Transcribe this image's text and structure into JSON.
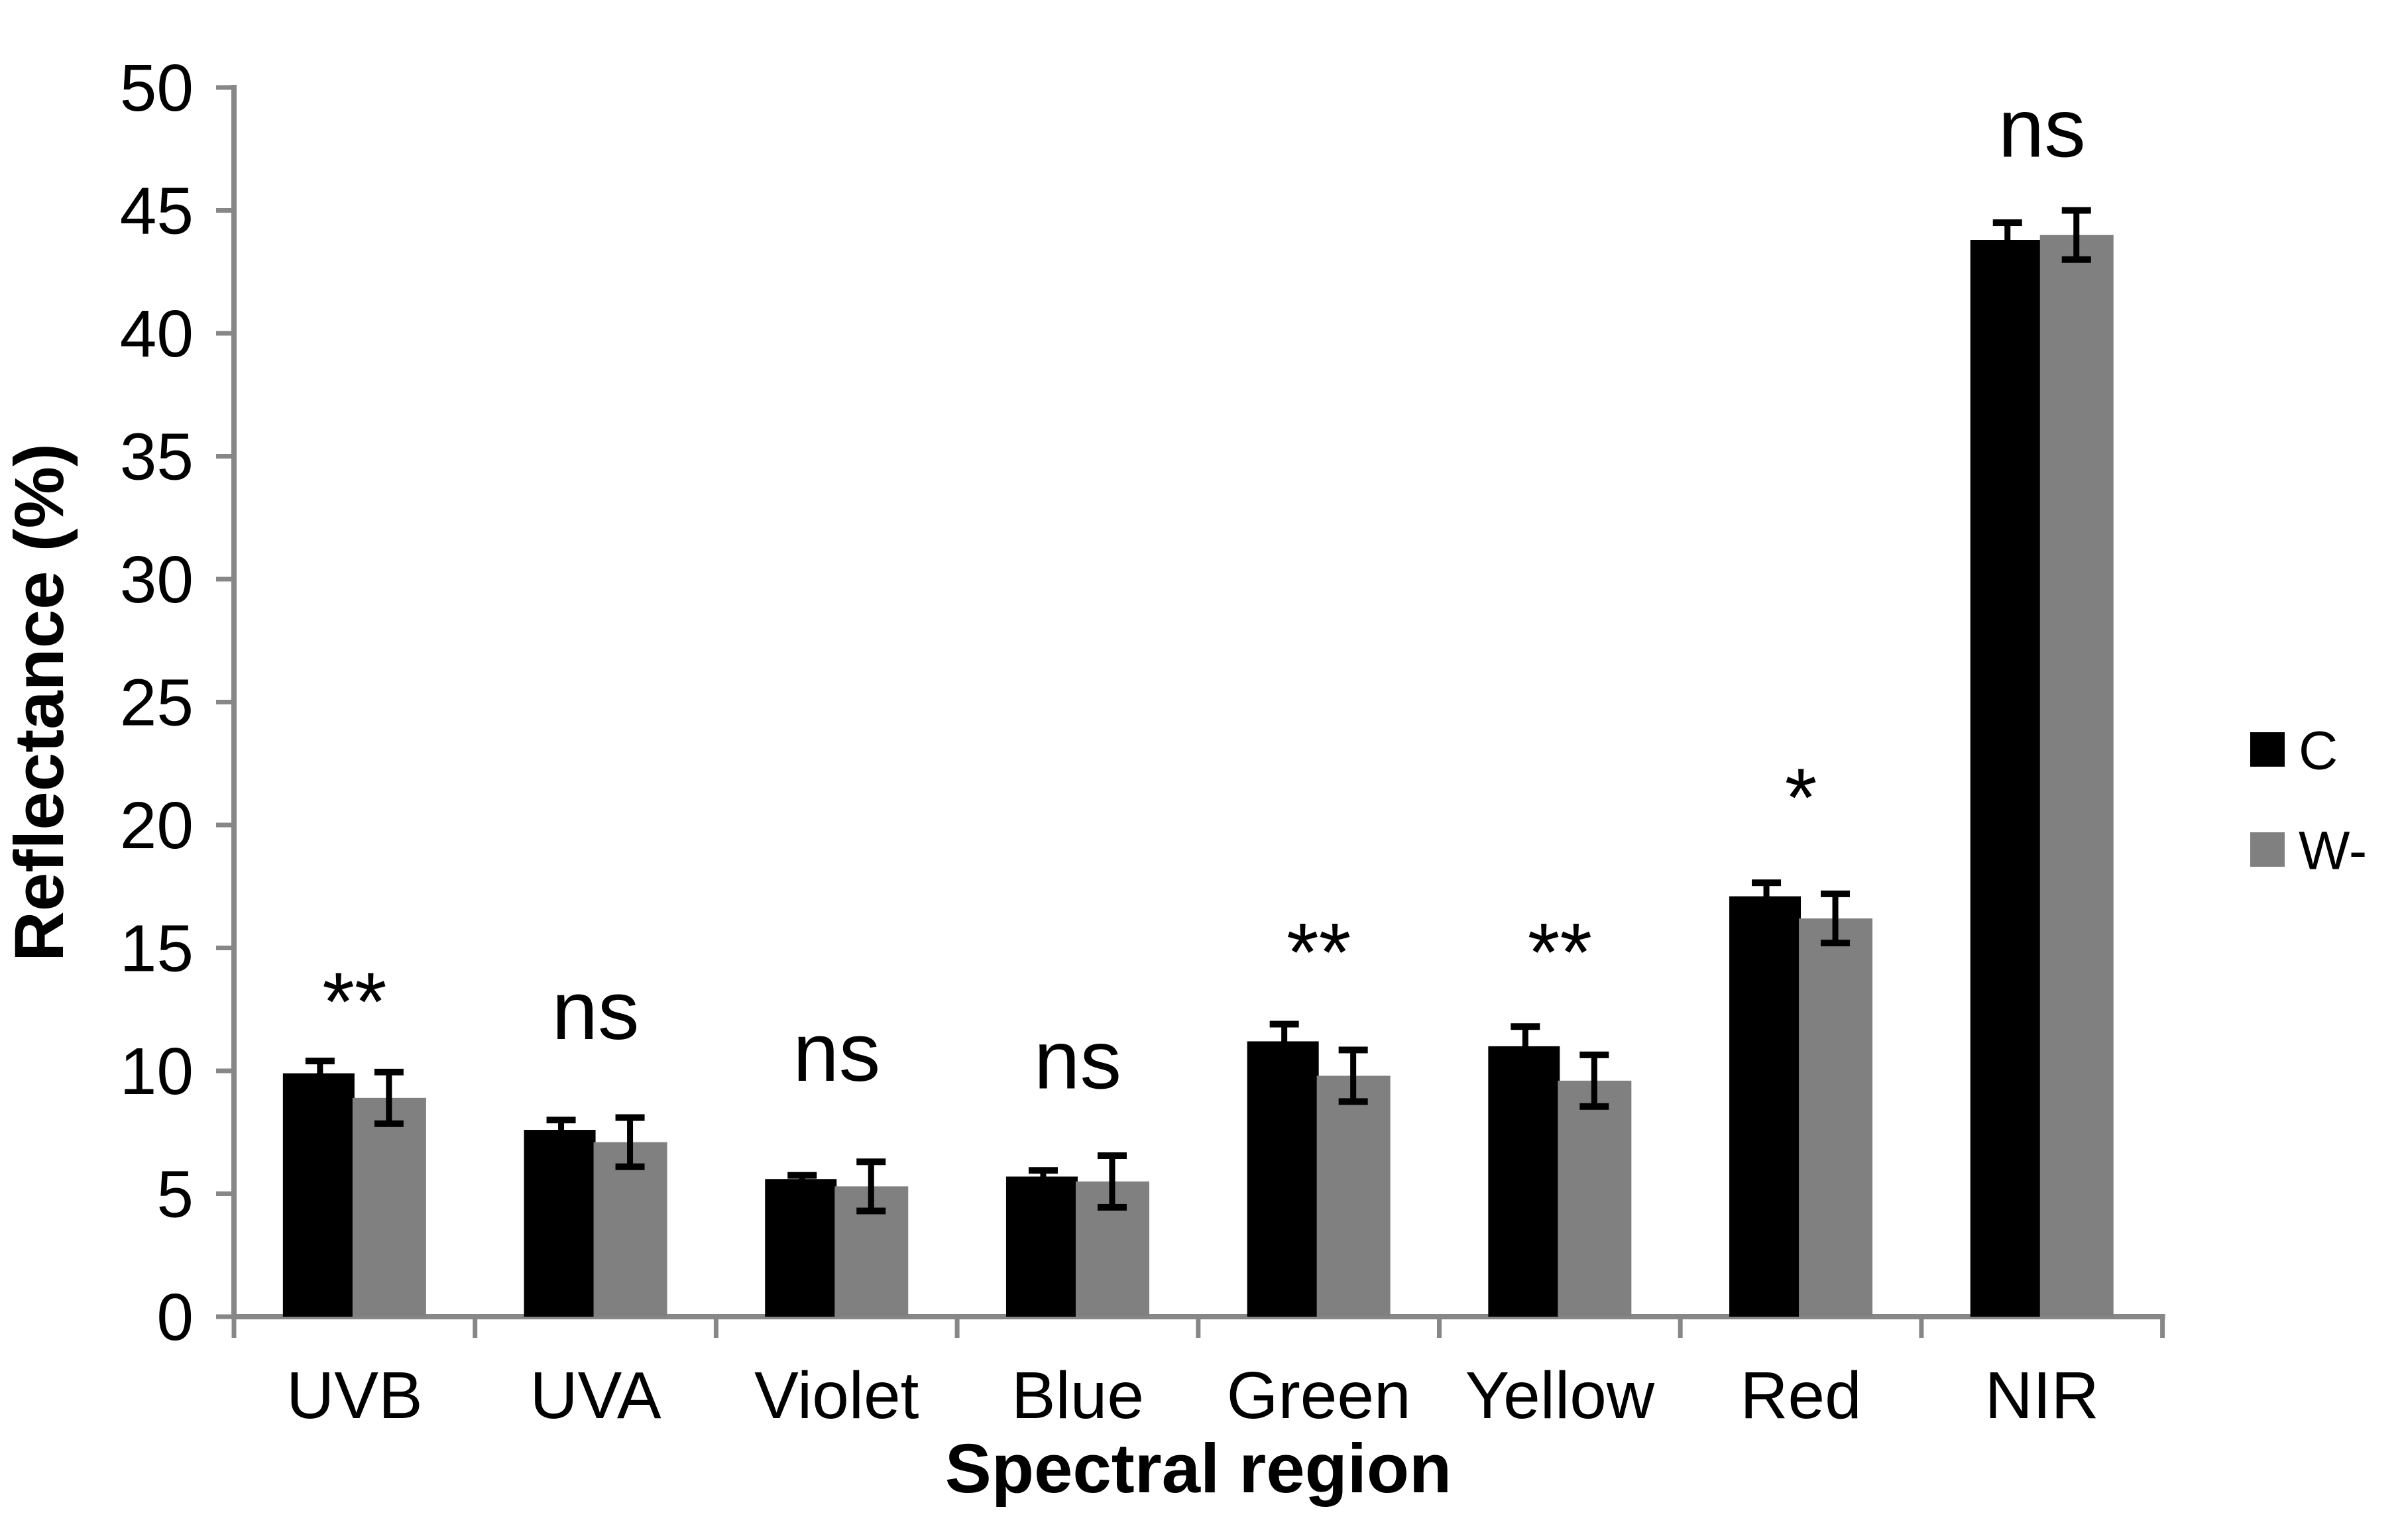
{
  "chart_data": {
    "type": "bar",
    "title": "",
    "xlabel": "Spectral region",
    "ylabel": "Reflectance (%)",
    "categories": [
      "UVB",
      "UVA",
      "Violet",
      "Blue",
      "Green",
      "Yellow",
      "Red",
      "NIR"
    ],
    "series": [
      {
        "name": "C",
        "color": "#000000",
        "values": [
          9.9,
          7.6,
          5.6,
          5.7,
          11.2,
          11.0,
          17.1,
          43.8
        ],
        "errors": [
          0.5,
          0.4,
          0.15,
          0.25,
          0.7,
          0.8,
          0.55,
          0.7
        ]
      },
      {
        "name": "W-",
        "color": "#808080",
        "values": [
          8.9,
          7.1,
          5.3,
          5.5,
          9.8,
          9.6,
          16.2,
          44.0
        ],
        "errors": [
          1.05,
          1.0,
          1.0,
          1.05,
          1.05,
          1.05,
          1.0,
          1.0
        ]
      }
    ],
    "significance": [
      {
        "category": "UVB",
        "label": "**",
        "y": 13.4
      },
      {
        "category": "UVA",
        "label": "ns",
        "y": 12.3
      },
      {
        "category": "Violet",
        "label": "ns",
        "y": 10.6
      },
      {
        "category": "Blue",
        "label": "ns",
        "y": 10.3
      },
      {
        "category": "Green",
        "label": "**",
        "y": 15.4
      },
      {
        "category": "Yellow",
        "label": "**",
        "y": 15.4
      },
      {
        "category": "Red",
        "label": "*",
        "y": 21.7
      },
      {
        "category": "NIR",
        "label": "ns",
        "y": 48.2
      }
    ],
    "ylim": [
      0,
      50
    ],
    "yticks": [
      0,
      5,
      10,
      15,
      20,
      25,
      30,
      35,
      40,
      45,
      50
    ],
    "grid": false,
    "legend_position": "right",
    "axis_color": "#878787",
    "error_bar_color": "#000000",
    "background_color": "#ffffff"
  }
}
